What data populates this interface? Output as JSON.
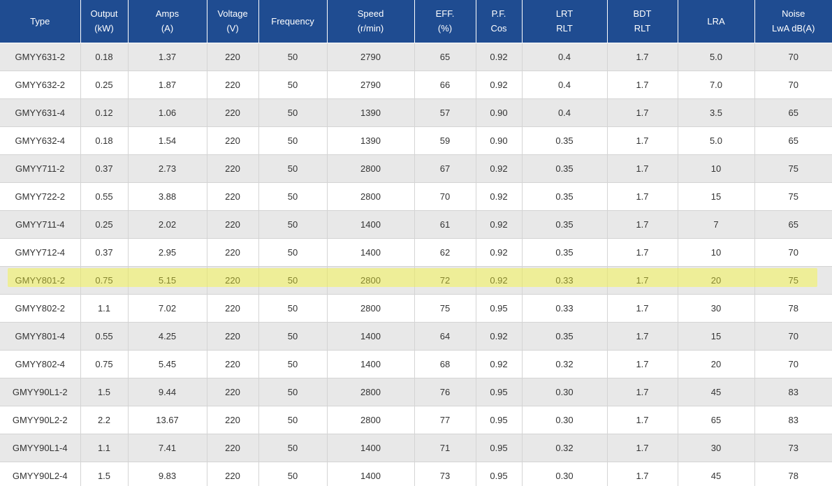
{
  "headers": [
    {
      "line1": "Type",
      "line2": ""
    },
    {
      "line1": "Output",
      "line2": "(kW)"
    },
    {
      "line1": "Amps",
      "line2": "(A)"
    },
    {
      "line1": "Voltage",
      "line2": "(V)"
    },
    {
      "line1": "Frequency",
      "line2": ""
    },
    {
      "line1": "Speed",
      "line2": "(r/min)"
    },
    {
      "line1": "EFF.",
      "line2": "(%)"
    },
    {
      "line1": "P.F.",
      "line2": "Cos"
    },
    {
      "line1": "LRT",
      "line2": "RLT"
    },
    {
      "line1": "BDT",
      "line2": "RLT"
    },
    {
      "line1": "LRA",
      "line2": ""
    },
    {
      "line1": "Noise",
      "line2": "LwA dB(A)"
    }
  ],
  "rows": [
    [
      "GMYY631-2",
      "0.18",
      "1.37",
      "220",
      "50",
      "2790",
      "65",
      "0.92",
      "0.4",
      "1.7",
      "5.0",
      "70"
    ],
    [
      "GMYY632-2",
      "0.25",
      "1.87",
      "220",
      "50",
      "2790",
      "66",
      "0.92",
      "0.4",
      "1.7",
      "7.0",
      "70"
    ],
    [
      "GMYY631-4",
      "0.12",
      "1.06",
      "220",
      "50",
      "1390",
      "57",
      "0.90",
      "0.4",
      "1.7",
      "3.5",
      "65"
    ],
    [
      "GMYY632-4",
      "0.18",
      "1.54",
      "220",
      "50",
      "1390",
      "59",
      "0.90",
      "0.35",
      "1.7",
      "5.0",
      "65"
    ],
    [
      "GMYY711-2",
      "0.37",
      "2.73",
      "220",
      "50",
      "2800",
      "67",
      "0.92",
      "0.35",
      "1.7",
      "10",
      "75"
    ],
    [
      "GMYY722-2",
      "0.55",
      "3.88",
      "220",
      "50",
      "2800",
      "70",
      "0.92",
      "0.35",
      "1.7",
      "15",
      "75"
    ],
    [
      "GMYY711-4",
      "0.25",
      "2.02",
      "220",
      "50",
      "1400",
      "61",
      "0.92",
      "0.35",
      "1.7",
      "7",
      "65"
    ],
    [
      "GMYY712-4",
      "0.37",
      "2.95",
      "220",
      "50",
      "1400",
      "62",
      "0.92",
      "0.35",
      "1.7",
      "10",
      "70"
    ],
    [
      "GMYY801-2",
      "0.75",
      "5.15",
      "220",
      "50",
      "2800",
      "72",
      "0.92",
      "0.33",
      "1.7",
      "20",
      "75"
    ],
    [
      "GMYY802-2",
      "1.1",
      "7.02",
      "220",
      "50",
      "2800",
      "75",
      "0.95",
      "0.33",
      "1.7",
      "30",
      "78"
    ],
    [
      "GMYY801-4",
      "0.55",
      "4.25",
      "220",
      "50",
      "1400",
      "64",
      "0.92",
      "0.35",
      "1.7",
      "15",
      "70"
    ],
    [
      "GMYY802-4",
      "0.75",
      "5.45",
      "220",
      "50",
      "1400",
      "68",
      "0.92",
      "0.32",
      "1.7",
      "20",
      "70"
    ],
    [
      "GMYY90L1-2",
      "1.5",
      "9.44",
      "220",
      "50",
      "2800",
      "76",
      "0.95",
      "0.30",
      "1.7",
      "45",
      "83"
    ],
    [
      "GMYY90L2-2",
      "2.2",
      "13.67",
      "220",
      "50",
      "2800",
      "77",
      "0.95",
      "0.30",
      "1.7",
      "65",
      "83"
    ],
    [
      "GMYY90L1-4",
      "1.1",
      "7.41",
      "220",
      "50",
      "1400",
      "71",
      "0.95",
      "0.32",
      "1.7",
      "30",
      "73"
    ],
    [
      "GMYY90L2-4",
      "1.5",
      "9.83",
      "220",
      "50",
      "1400",
      "73",
      "0.95",
      "0.30",
      "1.7",
      "45",
      "78"
    ]
  ],
  "colors": {
    "header_bg": "#1f4c91",
    "header_text": "#ffffff",
    "row_alt_bg": "#e8e8e8",
    "row_bg": "#ffffff",
    "highlight": "#f6f628"
  }
}
